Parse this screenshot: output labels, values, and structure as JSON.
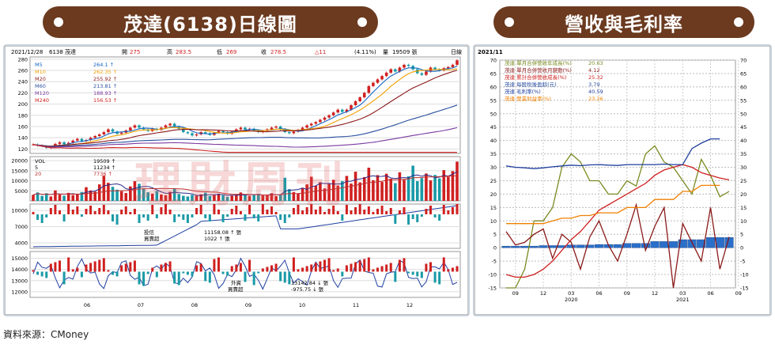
{
  "left_title": "茂達(6138)日線圖",
  "right_title": "營收與毛利率",
  "source": "資料來源：CMoney",
  "watermark": "理財周刊",
  "colors": {
    "banner": "#6b3a1f",
    "panel_bg": "#c9d2dc",
    "up": "#d02020",
    "down": "#1a9aa6"
  },
  "chart_data": [
    {
      "type": "candlestick",
      "name": "daily",
      "header": {
        "date": "2021/12/28",
        "code": "6138 茂達",
        "open_label": "開",
        "open": "275",
        "high_label": "高",
        "high": "283.5",
        "low_label": "低",
        "low": "269",
        "close_label": "收",
        "close": "278.5",
        "change": "△11",
        "change_pct": "(4.11%)",
        "volume_label": "量",
        "volume": "19509 張",
        "period": "日線"
      },
      "ma_legend": [
        {
          "name": "M5",
          "value": "264.1 ↑",
          "color": "#1565c0"
        },
        {
          "name": "M10",
          "value": "262.35 ↑",
          "color": "#f2a000"
        },
        {
          "name": "M20",
          "value": "255.92 ↑",
          "color": "#8b1a1a"
        },
        {
          "name": "M60",
          "value": "213.81 ↑",
          "color": "#2a4fa0"
        },
        {
          "name": "M120",
          "value": "188.93 ↑",
          "color": "#7a3aa0"
        },
        {
          "name": "M240",
          "value": "156.53 ↑",
          "color": "#d02020"
        }
      ],
      "y_ticks": [
        "280",
        "260",
        "240",
        "220",
        "200",
        "180",
        "160",
        "140",
        "120"
      ],
      "ylim": [
        112,
        284
      ],
      "x_ticks": [
        "06",
        "07",
        "08",
        "09",
        "10",
        "11",
        "12"
      ],
      "close_path": [
        128,
        126,
        125,
        122,
        124,
        129,
        132,
        128,
        131,
        135,
        138,
        134,
        136,
        140,
        143,
        146,
        150,
        155,
        151,
        147,
        149,
        153,
        158,
        162,
        158,
        155,
        152,
        156,
        154,
        158,
        162,
        165,
        160,
        156,
        150,
        148,
        144,
        146,
        150,
        148,
        145,
        149,
        152,
        150,
        147,
        151,
        155,
        158,
        154,
        156,
        153,
        150,
        152,
        155,
        158,
        160,
        155,
        150,
        148,
        151,
        154,
        158,
        162,
        165,
        168,
        172,
        176,
        180,
        185,
        190,
        186,
        190,
        198,
        205,
        212,
        220,
        232,
        238,
        244,
        250,
        256,
        262,
        258,
        265,
        270,
        268,
        262,
        255,
        252,
        258,
        265,
        262,
        260,
        264,
        266,
        270,
        278
      ]
    },
    {
      "type": "volume",
      "legend": [
        {
          "name": "VOL",
          "value": "19509 ↑"
        },
        {
          "name": "5",
          "value": "11234 ↑"
        },
        {
          "name": "20",
          "value": "7736 ↑"
        }
      ],
      "y_ticks": [
        "20000",
        "15000",
        "10000",
        "5000"
      ],
      "ylim": [
        0,
        22000
      ],
      "values": [
        3000,
        4200,
        2500,
        3800,
        2200,
        5200,
        3100,
        2600,
        4000,
        2900,
        3500,
        4400,
        6800,
        5200,
        4600,
        8200,
        12500,
        9000,
        7000,
        5600,
        4800,
        3900,
        7200,
        9800,
        8500,
        6200,
        4300,
        3600,
        4900,
        3200,
        2800,
        4500,
        6200,
        3400,
        2500,
        2200,
        3000,
        2600,
        3300,
        4100,
        2400,
        2900,
        3600,
        2800,
        2000,
        2600,
        3100,
        4200,
        3000,
        2500,
        2900,
        3500,
        2700,
        3100,
        3800,
        2400,
        3200,
        11500,
        5800,
        4400,
        3600,
        6500,
        8200,
        12000,
        7500,
        9300,
        6200,
        8400,
        10500,
        7600,
        9800,
        12400,
        8600,
        14500,
        9200,
        11800,
        16500,
        10300,
        12800,
        9400,
        13500,
        11000,
        8800,
        14200,
        10500,
        12200,
        17500,
        9800,
        11300,
        13600,
        10200,
        12900,
        11200,
        15300,
        12000,
        14800,
        19509
      ]
    },
    {
      "type": "investment-trust",
      "label": "投信",
      "cumulative_label": "買賣超",
      "value_text": "11158.08 ↑ 張",
      "net_text": "1022 ↑ 張",
      "y_ticks": [
        "10000",
        "7000",
        "4000"
      ],
      "ylim": [
        3000,
        11200
      ]
    },
    {
      "type": "foreign-investors",
      "label": "外資",
      "cumulative_label": "買賣超",
      "value_text": "13142.84 ↓ 張",
      "net_text": "-975.75 ↓ 張",
      "y_ticks": [
        "15000",
        "14000",
        "13000",
        "12000"
      ],
      "ylim": [
        11500,
        15600
      ]
    },
    {
      "type": "line+bar",
      "name": "revenue-margin",
      "period_label": "2021/11",
      "y_ticks": [
        "70",
        "65",
        "60",
        "55",
        "50",
        "45",
        "40",
        "35",
        "30",
        "25",
        "20",
        "15",
        "10",
        "5",
        "0",
        "-5",
        "-10",
        "-15"
      ],
      "ylim": [
        -15,
        70
      ],
      "x_ticks": [
        "09",
        "12",
        "03",
        "06",
        "09",
        "12",
        "03",
        "06",
        "09"
      ],
      "year_labels": [
        "2020",
        "2021"
      ],
      "series": [
        {
          "name": "茂達 單月合併營收年成長(%)",
          "value": "20.63",
          "color": "#7a8a20",
          "values": [
            -15,
            -15,
            -8,
            10,
            10,
            15,
            30,
            35,
            32,
            25,
            25,
            20,
            20,
            25,
            23,
            35,
            38,
            32,
            30,
            25,
            20,
            33,
            27,
            19,
            21
          ]
        },
        {
          "name": "茂達 單月合併營收月變動(%)",
          "value": "4.12",
          "color": "#8b1a1a",
          "values": [
            6,
            1,
            2,
            5,
            7,
            -4,
            5,
            2,
            -8,
            4,
            10,
            1,
            -5,
            5,
            16,
            -1,
            8,
            15,
            -15,
            9,
            2,
            -5,
            15,
            -8,
            4
          ]
        },
        {
          "name": "茂達 累計合併營收成長(%)",
          "value": "25.32",
          "color": "#d02020",
          "values": [
            -10,
            -11,
            -11,
            -10,
            -8,
            -5,
            -1,
            3,
            6,
            10,
            14,
            16,
            18,
            20,
            22,
            24,
            27,
            29,
            30,
            31,
            30,
            28,
            27,
            26,
            25.32
          ]
        },
        {
          "name": "茂達 每股稅後盈餘(元)",
          "value": "3.79",
          "color": "#2a4fa0",
          "bar": true,
          "values": [
            0.6,
            0.6,
            0.6,
            0.6,
            0.8,
            0.8,
            0.8,
            1.0,
            1.0,
            1.0,
            1.2,
            1.2,
            1.2,
            1.6,
            1.6,
            1.6,
            2.3,
            2.3,
            2.3,
            3.0,
            3.0,
            3.0,
            3.79,
            3.79,
            3.79
          ]
        },
        {
          "name": "茂達 毛利率(%)",
          "value": "40.59",
          "color": "#1f3fa0",
          "values": [
            30.5,
            30.0,
            29.8,
            29.5,
            29.8,
            30.2,
            30.5,
            30.8,
            30.6,
            30.9,
            31.0,
            30.8,
            30.7,
            31.0,
            31.0,
            31.0,
            31.0,
            31.2,
            31.0,
            31.0,
            37.0,
            39.0,
            40.59,
            40.59,
            null
          ]
        },
        {
          "name": "茂達 營業利益率(%)",
          "value": "23.26",
          "color": "#f08000",
          "values": [
            9,
            9,
            9,
            9,
            9,
            10,
            11,
            11,
            12,
            12,
            13,
            13,
            13,
            15,
            15,
            15,
            18,
            18,
            18,
            21,
            21,
            23.26,
            23.26,
            23.26,
            null
          ]
        }
      ]
    }
  ]
}
